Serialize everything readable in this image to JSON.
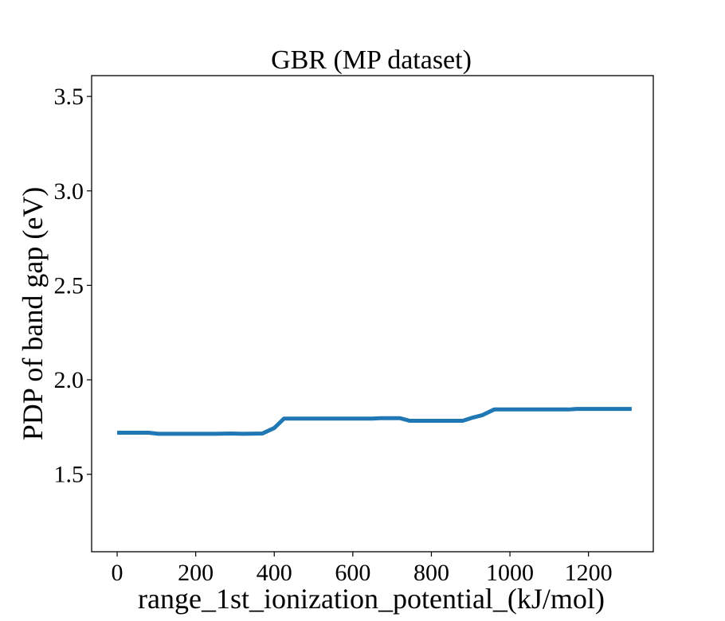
{
  "chart_data": {
    "type": "line",
    "title": "GBR (MP dataset)",
    "xlabel": "range_1st_ionization_potential_(kJ/mol)",
    "ylabel": "PDP of band gap (eV)",
    "xlim": [
      -65,
      1365
    ],
    "ylim": [
      1.09,
      3.61
    ],
    "xticks": [
      0,
      200,
      400,
      600,
      800,
      1000,
      1200
    ],
    "xtick_labels": [
      "0",
      "200",
      "400",
      "600",
      "800",
      "1000",
      "1200"
    ],
    "yticks": [
      1.5,
      2.0,
      2.5,
      3.0,
      3.5
    ],
    "ytick_labels": [
      "1.5",
      "2.0",
      "2.5",
      "3.0",
      "3.5"
    ],
    "grid": false,
    "series": [
      {
        "color": "#1f77b4",
        "x": [
          0,
          80,
          105,
          250,
          290,
          320,
          370,
          400,
          425,
          650,
          670,
          720,
          745,
          880,
          905,
          930,
          960,
          1150,
          1170,
          1310
        ],
        "y": [
          1.72,
          1.72,
          1.714,
          1.714,
          1.716,
          1.714,
          1.716,
          1.745,
          1.795,
          1.795,
          1.797,
          1.797,
          1.783,
          1.783,
          1.8,
          1.813,
          1.843,
          1.843,
          1.846,
          1.846
        ]
      }
    ]
  }
}
